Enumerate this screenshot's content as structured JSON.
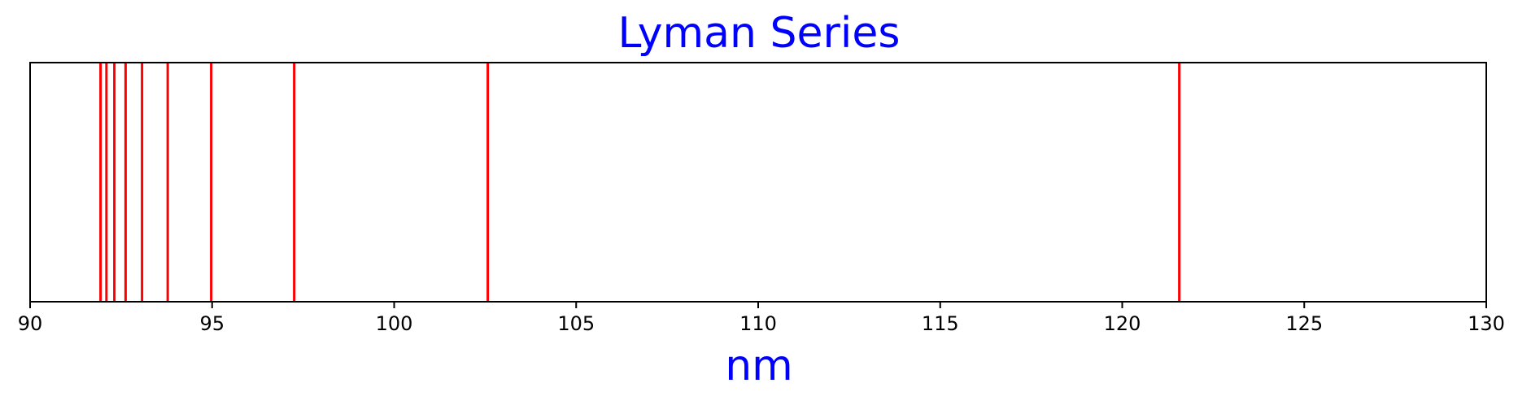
{
  "chart_data": {
    "type": "spectral-lines",
    "title": "Lyman Series",
    "xlabel": "nm",
    "ylabel": "",
    "xlim": [
      90,
      130
    ],
    "x_ticks": [
      90,
      95,
      100,
      105,
      110,
      115,
      120,
      125,
      130
    ],
    "lines_nm": [
      121.567,
      102.572,
      97.254,
      94.974,
      93.78,
      93.075,
      92.623,
      92.315,
      92.097,
      91.935
    ],
    "y_axis_visible": false,
    "grid": false,
    "colors": {
      "lines": "#ff0000",
      "title": "#0000ff",
      "xlabel": "#0000ff",
      "axes": "#000000"
    }
  }
}
